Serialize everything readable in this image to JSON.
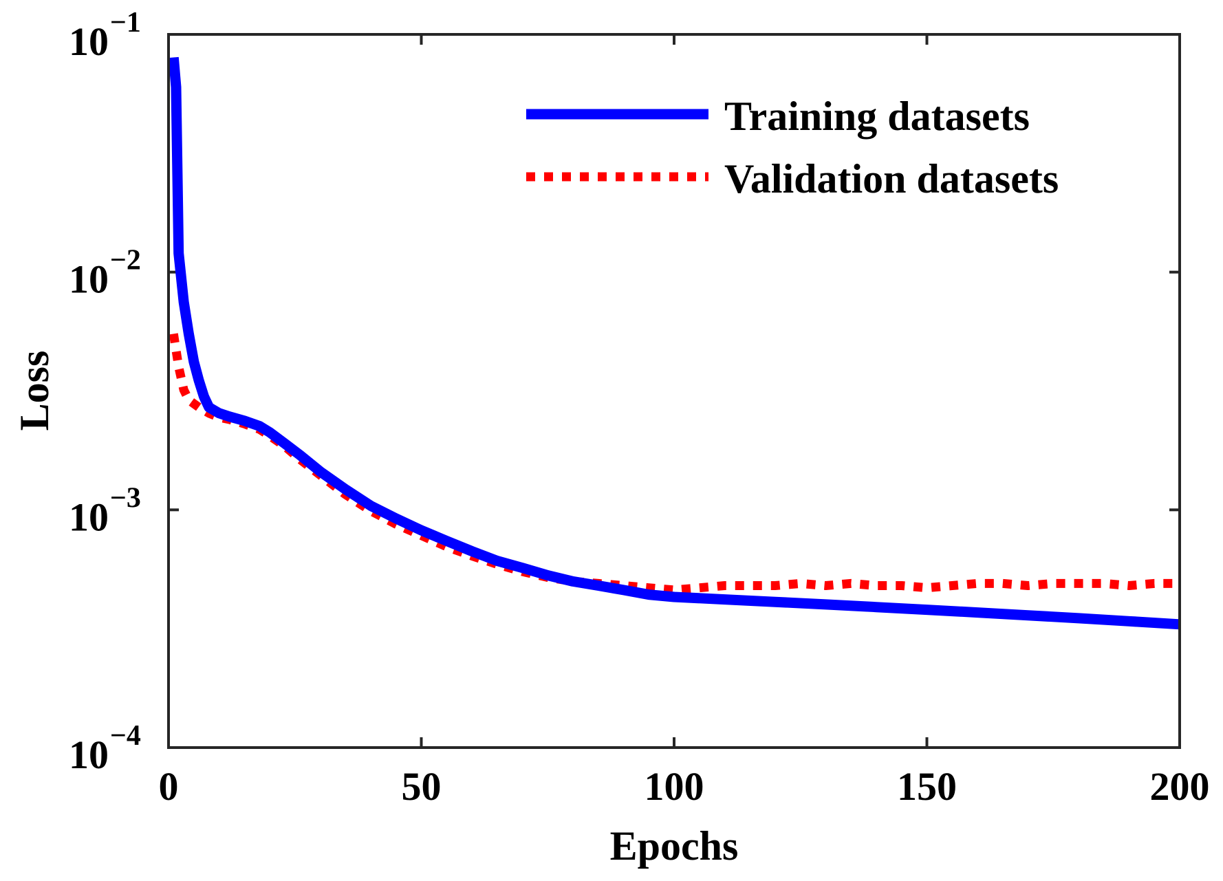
{
  "chart_data": {
    "type": "line",
    "xlabel": "Epochs",
    "ylabel": "Loss",
    "yscale": "log",
    "xlim": [
      0,
      200
    ],
    "ylim": [
      0.0001,
      0.1
    ],
    "xticks": [
      0,
      50,
      100,
      150,
      200
    ],
    "yticks": [
      {
        "value": 0.1,
        "base": "10",
        "exp": "−1"
      },
      {
        "value": 0.01,
        "base": "10",
        "exp": "−2"
      },
      {
        "value": 0.001,
        "base": "10",
        "exp": "−3"
      },
      {
        "value": 0.0001,
        "base": "10",
        "exp": "−4"
      }
    ],
    "legend_position": "top-right",
    "series": [
      {
        "name": "Training datasets",
        "color": "#0000ff",
        "style": "solid",
        "points": [
          [
            1,
            0.08
          ],
          [
            1.5,
            0.06
          ],
          [
            2,
            0.012
          ],
          [
            3,
            0.0075
          ],
          [
            4,
            0.0055
          ],
          [
            5,
            0.0042
          ],
          [
            6,
            0.0035
          ],
          [
            7,
            0.003
          ],
          [
            8,
            0.0027
          ],
          [
            10,
            0.00255
          ],
          [
            12,
            0.00247
          ],
          [
            15,
            0.00237
          ],
          [
            18,
            0.00225
          ],
          [
            20,
            0.00212
          ],
          [
            23,
            0.0019
          ],
          [
            26,
            0.0017
          ],
          [
            30,
            0.00145
          ],
          [
            35,
            0.00122
          ],
          [
            40,
            0.00104
          ],
          [
            45,
            0.00092
          ],
          [
            50,
            0.00082
          ],
          [
            55,
            0.00074
          ],
          [
            60,
            0.00067
          ],
          [
            65,
            0.00061
          ],
          [
            70,
            0.00057
          ],
          [
            75,
            0.00053
          ],
          [
            80,
            0.0005
          ],
          [
            85,
            0.00048
          ],
          [
            90,
            0.00046
          ],
          [
            95,
            0.00044
          ],
          [
            100,
            0.00043
          ],
          [
            110,
            0.00042
          ],
          [
            120,
            0.00041
          ],
          [
            130,
            0.0004
          ],
          [
            140,
            0.00039
          ],
          [
            150,
            0.00038
          ],
          [
            160,
            0.00037
          ],
          [
            170,
            0.00036
          ],
          [
            180,
            0.00035
          ],
          [
            190,
            0.00034
          ],
          [
            200,
            0.00033
          ]
        ]
      },
      {
        "name": "Validation datasets",
        "color": "#ff0000",
        "style": "dotted",
        "points": [
          [
            1,
            0.0055
          ],
          [
            2,
            0.004
          ],
          [
            3,
            0.0032
          ],
          [
            4,
            0.0029
          ],
          [
            6,
            0.0027
          ],
          [
            8,
            0.00255
          ],
          [
            10,
            0.00245
          ],
          [
            12,
            0.0024
          ],
          [
            15,
            0.0023
          ],
          [
            18,
            0.00218
          ],
          [
            20,
            0.00205
          ],
          [
            23,
            0.00185
          ],
          [
            26,
            0.00163
          ],
          [
            30,
            0.0014
          ],
          [
            35,
            0.00116
          ],
          [
            40,
            0.00099
          ],
          [
            45,
            0.00087
          ],
          [
            50,
            0.00078
          ],
          [
            55,
            0.0007
          ],
          [
            60,
            0.00064
          ],
          [
            65,
            0.00059
          ],
          [
            70,
            0.00055
          ],
          [
            75,
            0.00052
          ],
          [
            80,
            0.0005
          ],
          [
            85,
            0.00049
          ],
          [
            90,
            0.00048
          ],
          [
            95,
            0.00047
          ],
          [
            100,
            0.00046
          ],
          [
            105,
            0.00047
          ],
          [
            110,
            0.00048
          ],
          [
            115,
            0.00048
          ],
          [
            120,
            0.00048
          ],
          [
            125,
            0.00049
          ],
          [
            130,
            0.00048
          ],
          [
            135,
            0.00049
          ],
          [
            140,
            0.00048
          ],
          [
            145,
            0.00048
          ],
          [
            150,
            0.00047
          ],
          [
            155,
            0.00048
          ],
          [
            160,
            0.00049
          ],
          [
            165,
            0.00049
          ],
          [
            170,
            0.00048
          ],
          [
            175,
            0.00049
          ],
          [
            180,
            0.00049
          ],
          [
            185,
            0.00049
          ],
          [
            190,
            0.00048
          ],
          [
            195,
            0.00049
          ],
          [
            200,
            0.00049
          ]
        ]
      }
    ]
  }
}
